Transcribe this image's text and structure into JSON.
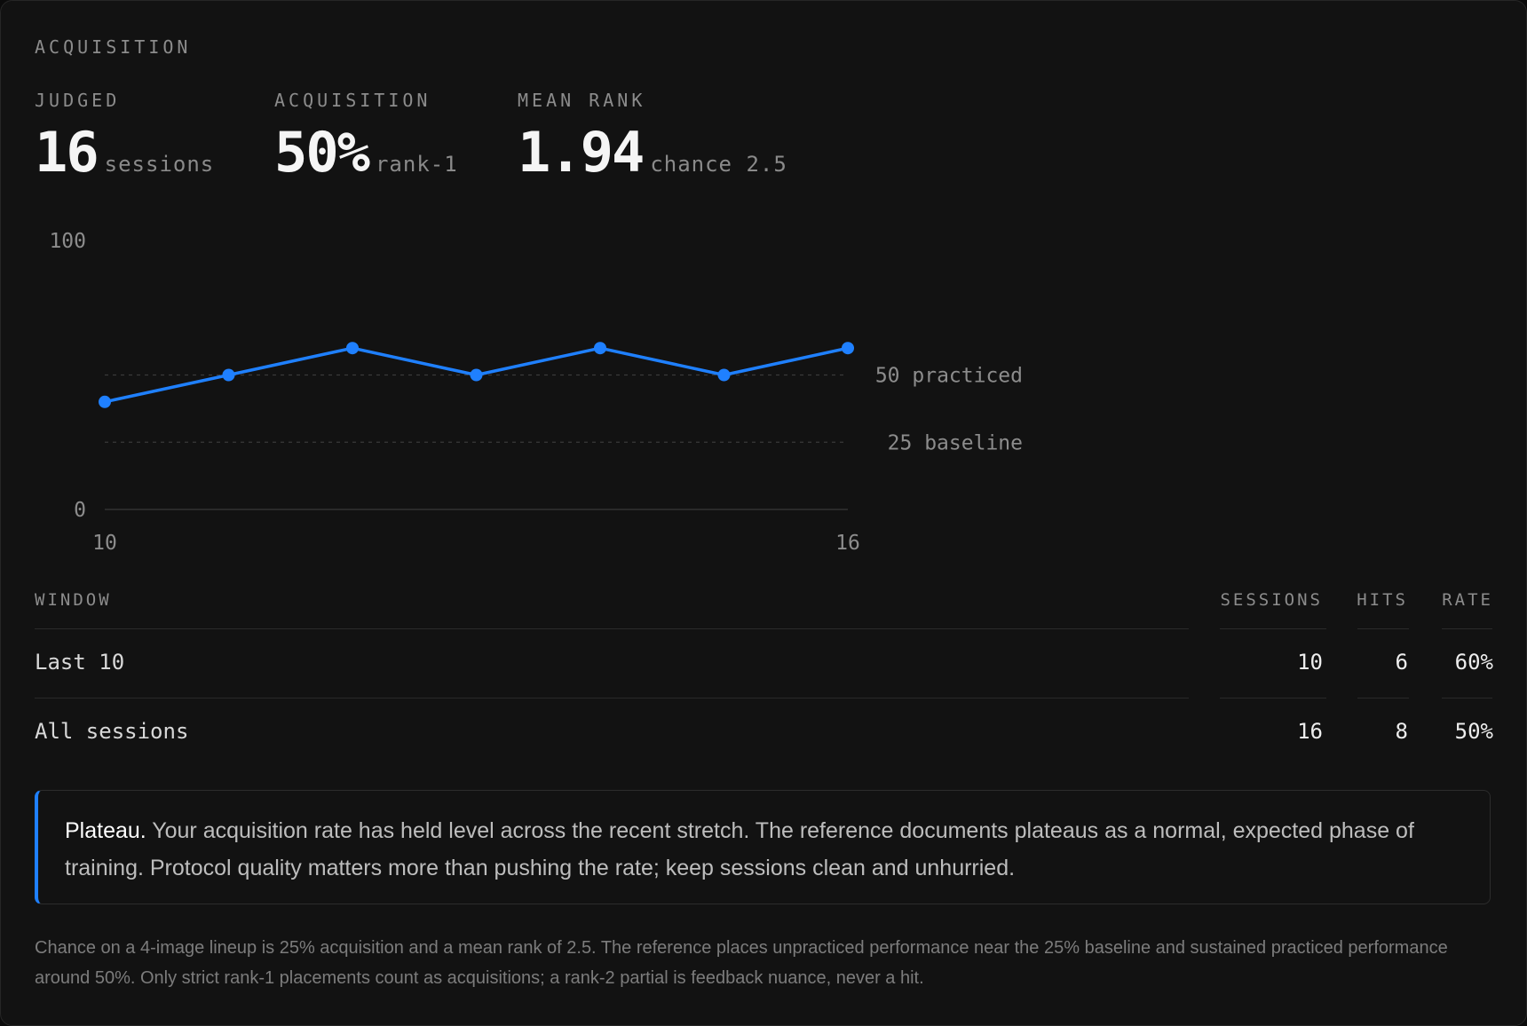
{
  "section": {
    "title": "ACQUISITION"
  },
  "stats": [
    {
      "label": "JUDGED",
      "value": "16",
      "unit": "sessions"
    },
    {
      "label": "ACQUISITION",
      "value": "50%",
      "unit": "rank-1"
    },
    {
      "label": "MEAN RANK",
      "value": "1.94",
      "unit": "chance 2.5"
    }
  ],
  "chart_data": {
    "type": "line",
    "x": [
      10,
      11,
      12,
      13,
      14,
      15,
      16
    ],
    "series": [
      {
        "values": [
          40,
          50,
          60,
          50,
          60,
          50,
          60
        ]
      }
    ],
    "ylim": [
      0,
      100
    ],
    "xlim": [
      10,
      16
    ],
    "y_tick_labels": [
      "100",
      "0"
    ],
    "x_tick_labels": [
      "10",
      "16"
    ],
    "reference_lines": [
      {
        "value": 50,
        "label": "50 practiced"
      },
      {
        "value": 25,
        "label": "25 baseline"
      }
    ],
    "line_color": "#1f80ff"
  },
  "table": {
    "headers": {
      "window": "WINDOW",
      "sessions": "SESSIONS",
      "hits": "HITS",
      "rate": "RATE"
    },
    "rows": [
      {
        "window": "Last 10",
        "sessions": "10",
        "hits": "6",
        "rate": "60%"
      },
      {
        "window": "All sessions",
        "sessions": "16",
        "hits": "8",
        "rate": "50%"
      }
    ]
  },
  "callout": {
    "lead": "Plateau.",
    "text": " Your acquisition rate has held level across the recent stretch. The reference documents plateaus as a normal, expected phase of training. Protocol quality matters more than pushing the rate; keep sessions clean and unhurried."
  },
  "footnote": "Chance on a 4-image lineup is 25% acquisition and a mean rank of 2.5. The reference places unpracticed performance near the 25% baseline and sustained practiced performance around 50%. Only strict rank-1 placements count as acquisitions; a rank-2 partial is feedback nuance, never a hit.",
  "colors": {
    "accent": "#1f80ff",
    "background": "#121212"
  }
}
